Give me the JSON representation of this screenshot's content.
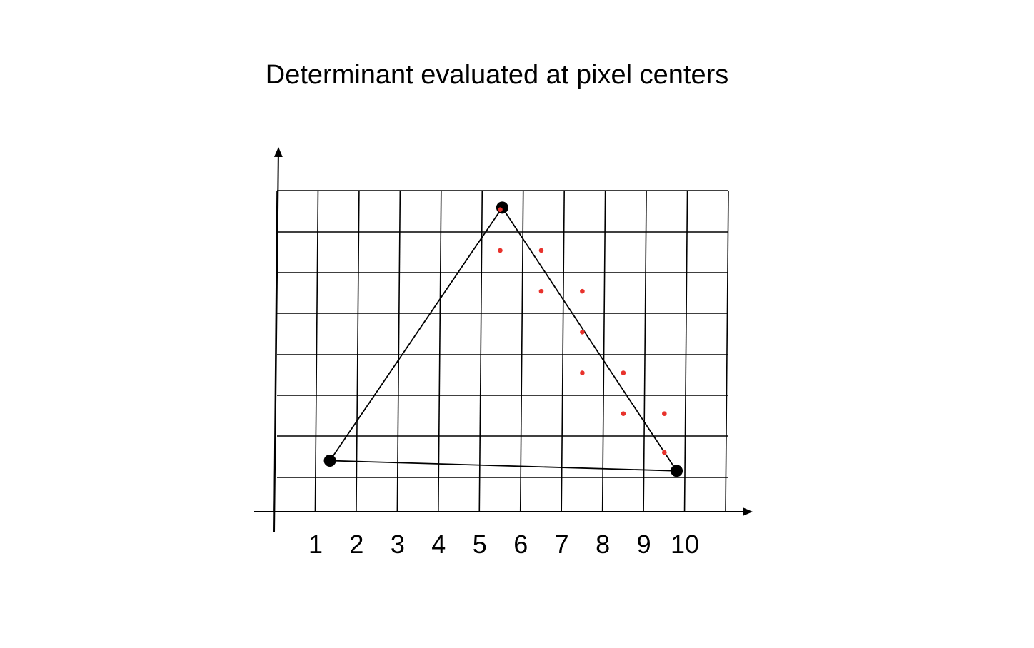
{
  "title": "Determinant evaluated at pixel centers",
  "x_tick_labels": [
    "1",
    "2",
    "3",
    "4",
    "5",
    "6",
    "7",
    "8",
    "9",
    "10"
  ],
  "colors": {
    "grid": "#000000",
    "triangle": "#000000",
    "vertex": "#000000",
    "sample_point": "#e8322c"
  },
  "triangle": {
    "vertices_grid": [
      [
        1.35,
        1.25
      ],
      [
        5.55,
        7.45
      ],
      [
        9.8,
        1.0
      ]
    ]
  },
  "sample_points_grid": [
    [
      5.5,
      7.4
    ],
    [
      5.5,
      6.4
    ],
    [
      6.5,
      6.4
    ],
    [
      6.5,
      5.4
    ],
    [
      7.5,
      5.4
    ],
    [
      7.5,
      4.4
    ],
    [
      7.5,
      3.4
    ],
    [
      8.5,
      3.4
    ],
    [
      8.5,
      2.4
    ],
    [
      9.5,
      2.4
    ],
    [
      9.5,
      1.45
    ]
  ]
}
